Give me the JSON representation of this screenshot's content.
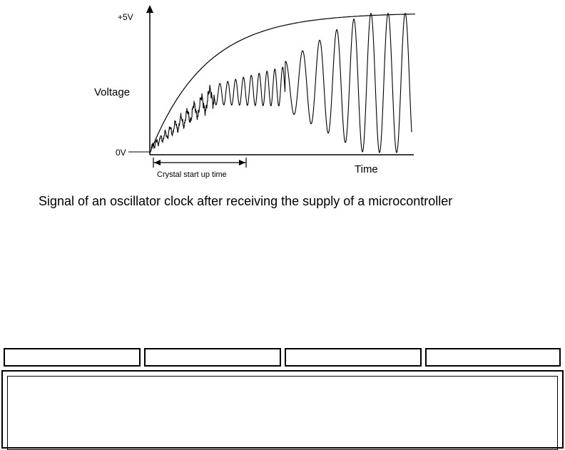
{
  "diagram": {
    "y_top_label": "+5V",
    "y_bottom_label": "0V",
    "y_axis_label": "Voltage",
    "x_axis_label": "Time",
    "startup_label": "Crystal start up time"
  },
  "caption": "Signal of an oscillator clock after receiving the supply of a microcontroller",
  "nav_buttons": [
    "",
    "",
    "",
    ""
  ],
  "content_panel": ""
}
